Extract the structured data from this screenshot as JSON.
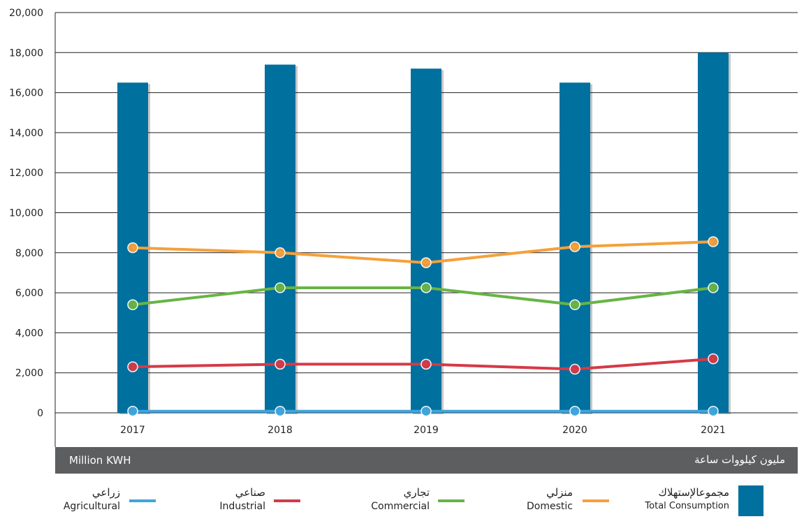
{
  "chart_data": {
    "type": "bar+line",
    "categories": [
      "2017",
      "2018",
      "2019",
      "2020",
      "2021"
    ],
    "ylim": [
      0,
      20000
    ],
    "yticks": [
      "0",
      "2,000",
      "4,000",
      "6,000",
      "8,000",
      "10,000",
      "12,000",
      "14,000",
      "16,000",
      "18,000",
      "20,000"
    ],
    "grid": true,
    "unit_en": "Million KWH",
    "unit_ar": "مليون كيلووات ساعة",
    "bars": {
      "name_ar": "مجموعالإستهلاك",
      "name_en": "Total Consumption",
      "color": "#00709f",
      "values": [
        16500,
        17400,
        17200,
        16500,
        18000
      ]
    },
    "series": [
      {
        "key": "domestic",
        "name_ar": "منزلي",
        "name_en": "Domestic",
        "color": "#f5a03b",
        "values": [
          8250,
          8000,
          7500,
          8300,
          8550
        ]
      },
      {
        "key": "commercial",
        "name_ar": "تجاري",
        "name_en": "Commercial",
        "color": "#68b445",
        "values": [
          5400,
          6250,
          6250,
          5400,
          6250
        ]
      },
      {
        "key": "industrial",
        "name_ar": "صناعي",
        "name_en": "Industrial",
        "color": "#d53a47",
        "values": [
          2300,
          2430,
          2430,
          2180,
          2700
        ]
      },
      {
        "key": "agricultural",
        "name_ar": "زراعي",
        "name_en": "Agricultural",
        "color": "#3fa5dc",
        "values": [
          80,
          80,
          80,
          80,
          80
        ]
      }
    ]
  }
}
